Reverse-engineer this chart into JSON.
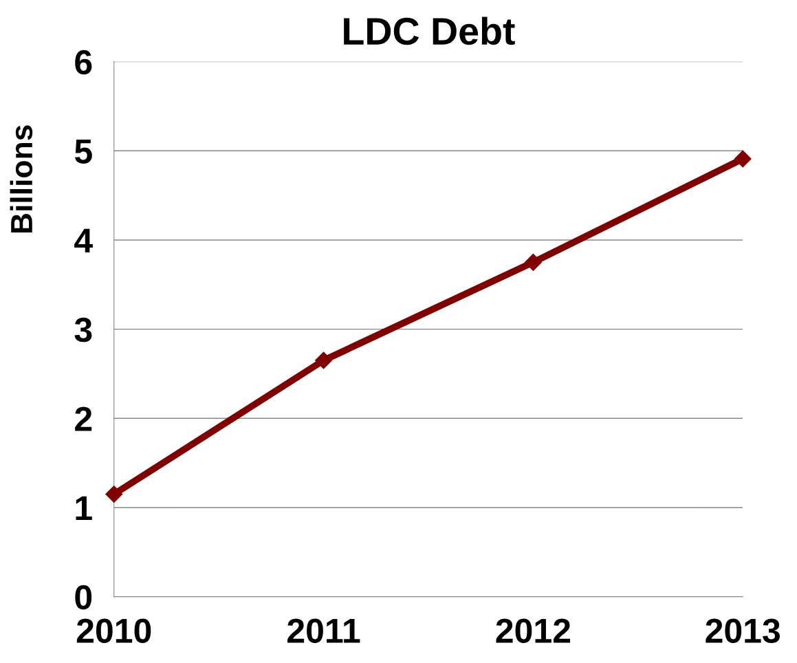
{
  "chart_data": {
    "type": "line",
    "title": "LDC Debt",
    "ylabel": "Billions",
    "x": [
      2010,
      2011,
      2012,
      2013
    ],
    "series": [
      {
        "color": "#800000",
        "values": [
          1.15,
          2.65,
          3.75,
          4.91
        ]
      }
    ],
    "xlim": [
      2010,
      2013
    ],
    "xticks": [
      2010,
      2011,
      2012,
      2013
    ],
    "ylim": [
      0,
      6
    ],
    "yticks": [
      0,
      1,
      2,
      3,
      4,
      5,
      6
    ],
    "grid": "y",
    "marker": "diamond",
    "line_style": "solid"
  }
}
